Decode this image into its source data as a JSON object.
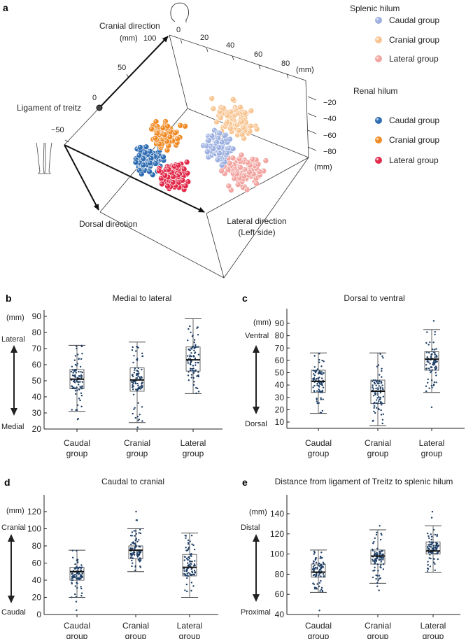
{
  "panel_a": {
    "letter": "a",
    "axis_labels": {
      "cranial": "Cranial direction",
      "dorsal": "Dorsal direction",
      "lateral_line1": "Lateral direction",
      "lateral_line2": "(Left side)",
      "ligament": "Ligament of treitz"
    },
    "cranial_ticks": [
      "100",
      "50",
      "0",
      "−50"
    ],
    "cranial_unit": "(mm)",
    "lateral_ticks": [
      "0",
      "20",
      "40",
      "60",
      "80"
    ],
    "lateral_unit": "(mm)",
    "depth_ticks": [
      "−20",
      "−40",
      "−60",
      "−80"
    ],
    "depth_unit": "(mm)",
    "legend": {
      "splenic_title": "Splenic hilum",
      "renal_title": "Renal hilum",
      "splenic": [
        {
          "label": "Caudal group",
          "color": "#9db0e0"
        },
        {
          "label": "Cranial group",
          "color": "#f8c592"
        },
        {
          "label": "Lateral group",
          "color": "#f2a4a0"
        }
      ],
      "renal": [
        {
          "label": "Caudal group",
          "color": "#2f6db3"
        },
        {
          "label": "Cranial group",
          "color": "#f08a24"
        },
        {
          "label": "Lateral group",
          "color": "#e12a4a"
        }
      ]
    }
  },
  "chart_data": [
    {
      "type": "box",
      "letter": "b",
      "title": "Medial to lateral",
      "unit": "(mm)",
      "top_label": "Lateral",
      "bottom_label": "Medial",
      "ylim": [
        20,
        90
      ],
      "yticks": [
        "20",
        "30",
        "40",
        "50",
        "60",
        "70",
        "80",
        "90"
      ],
      "ytick_values": [
        20,
        30,
        40,
        50,
        60,
        70,
        80,
        90
      ],
      "categories": [
        [
          "Caudal",
          "group"
        ],
        [
          "Cranial",
          "group"
        ],
        [
          "Lateral",
          "group"
        ]
      ],
      "groups": [
        {
          "whisker_low": 31,
          "q1": 45,
          "median": 51,
          "q3": 57,
          "whisker_high": 72,
          "outliers": [
            26,
            26.5
          ]
        },
        {
          "whisker_low": 24,
          "q1": 43.5,
          "median": 50.5,
          "q3": 58,
          "whisker_high": 74,
          "outliers": [
            21
          ]
        },
        {
          "whisker_low": 42,
          "q1": 56,
          "median": 63,
          "q3": 71,
          "whisker_high": 88.5,
          "outliers": []
        }
      ]
    },
    {
      "type": "box",
      "letter": "c",
      "title": "Dorsal to ventral",
      "unit": "(mm)",
      "top_label": "Ventral",
      "bottom_label": "Dorsal",
      "ylim": [
        5,
        98
      ],
      "yticks": [
        "10",
        "20",
        "30",
        "40",
        "50",
        "60",
        "70",
        "80",
        "90"
      ],
      "ytick_values": [
        10,
        20,
        30,
        40,
        50,
        60,
        70,
        80,
        90
      ],
      "categories": [
        [
          "Caudal",
          "group"
        ],
        [
          "Cranial",
          "group"
        ],
        [
          "Lateral",
          "group"
        ]
      ],
      "groups": [
        {
          "whisker_low": 17,
          "q1": 34,
          "median": 43,
          "q3": 52,
          "whisker_high": 66,
          "outliers": []
        },
        {
          "whisker_low": 7,
          "q1": 25,
          "median": 35,
          "q3": 44,
          "whisker_high": 66,
          "outliers": []
        },
        {
          "whisker_low": 34,
          "q1": 52,
          "median": 61,
          "q3": 67,
          "whisker_high": 85,
          "outliers": [
            92,
            22
          ]
        }
      ]
    },
    {
      "type": "box",
      "letter": "d",
      "title": "Caudal to cranial",
      "unit": "(mm)",
      "top_label": "Cranial",
      "bottom_label": "Caudal",
      "ylim": [
        0,
        140
      ],
      "yticks": [
        "0",
        "20",
        "40",
        "60",
        "80",
        "100",
        "120"
      ],
      "ytick_values": [
        0,
        20,
        40,
        60,
        80,
        100,
        120
      ],
      "categories": [
        [
          "Caudal",
          "group"
        ],
        [
          "Cranial",
          "group"
        ],
        [
          "Lateral",
          "group"
        ]
      ],
      "groups": [
        {
          "whisker_low": 20,
          "q1": 40,
          "median": 50,
          "q3": 55,
          "whisker_high": 75,
          "outliers": [
            15,
            5
          ]
        },
        {
          "whisker_low": 50,
          "q1": 65,
          "median": 75,
          "q3": 80,
          "whisker_high": 100,
          "outliers": [
            110,
            110,
            120
          ]
        },
        {
          "whisker_low": 20,
          "q1": 45,
          "median": 55,
          "q3": 70,
          "whisker_high": 95,
          "outliers": []
        }
      ]
    },
    {
      "type": "box",
      "letter": "e",
      "title": "Distance from ligament of Treitz to splenic hilum",
      "unit": "(mm)",
      "top_label": "Distal",
      "bottom_label": "Proximal",
      "ylim": [
        40,
        158
      ],
      "yticks": [
        "40",
        "60",
        "80",
        "100",
        "120",
        "140"
      ],
      "ytick_values": [
        40,
        60,
        80,
        100,
        120,
        140
      ],
      "categories": [
        [
          "Caudal",
          "group"
        ],
        [
          "Cranial",
          "group"
        ],
        [
          "Lateral",
          "group"
        ]
      ],
      "groups": [
        {
          "whisker_low": 62,
          "q1": 77,
          "median": 82,
          "q3": 90,
          "whisker_high": 104,
          "outliers": [
            44
          ]
        },
        {
          "whisker_low": 71,
          "q1": 90,
          "median": 98,
          "q3": 104,
          "whisker_high": 124,
          "outliers": [
            64,
            68,
            128
          ]
        },
        {
          "whisker_low": 82,
          "q1": 100,
          "median": 103,
          "q3": 112,
          "whisker_high": 128,
          "outliers": [
            142,
            136
          ]
        }
      ]
    }
  ]
}
